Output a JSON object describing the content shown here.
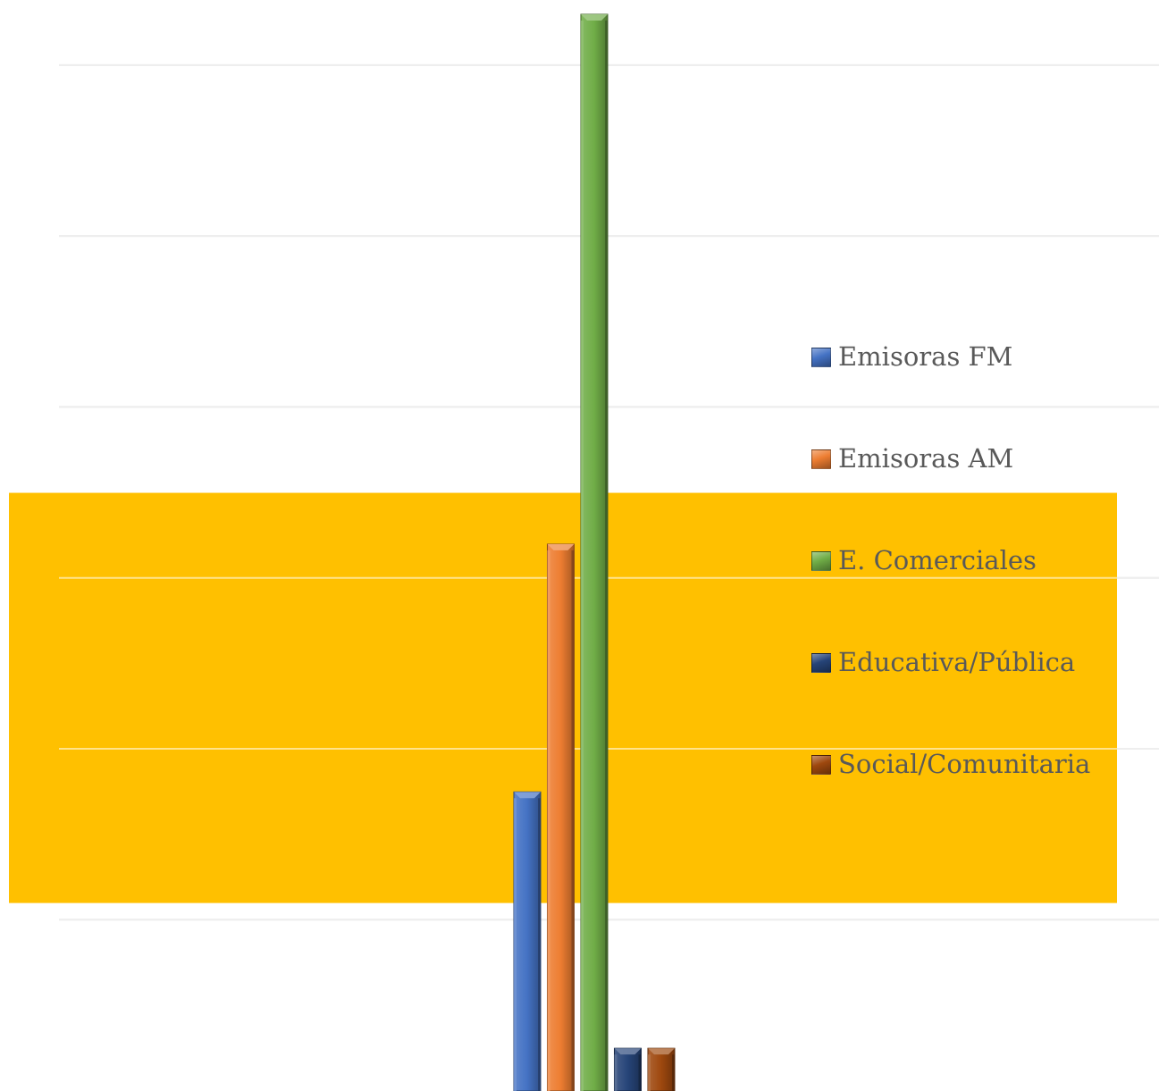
{
  "chart_data": {
    "type": "bar",
    "title": "",
    "xlabel": "",
    "ylabel": "",
    "ylim": [
      0,
      6.3
    ],
    "grid": true,
    "legend_position": "right",
    "background_band": {
      "from": 1.1,
      "to": 3.5,
      "color": "#FFC000"
    },
    "series": [
      {
        "name": "Emisoras FM",
        "values": [
          1.75
        ],
        "color": "#4472C4"
      },
      {
        "name": "Emisoras AM",
        "values": [
          3.2
        ],
        "color": "#ED7D31"
      },
      {
        "name": "E. Comerciales",
        "values": [
          6.3
        ],
        "color": "#70AD47"
      },
      {
        "name": "Educativa/Pública",
        "values": [
          0.25
        ],
        "color": "#264478"
      },
      {
        "name": "Social/Comunitaria",
        "values": [
          0.25
        ],
        "color": "#9E480E"
      }
    ],
    "y_gridlines": [
      1,
      2,
      3,
      4,
      5,
      6
    ]
  }
}
